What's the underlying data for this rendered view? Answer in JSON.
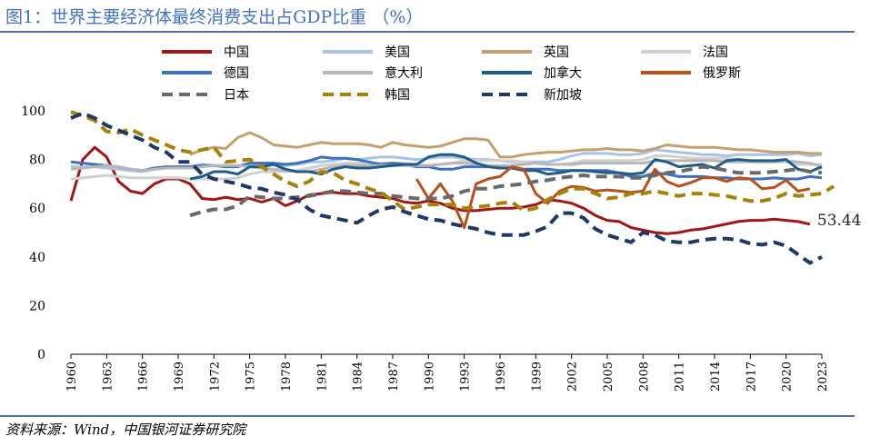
{
  "header": {
    "title": "图1：世界主要经济体最终消费支出占GDP比重 （%）"
  },
  "footer": {
    "source": "资料来源：Wind，中国银河证券研究院"
  },
  "colors": {
    "rule": "#4f6fa8",
    "title": "#4472c4"
  },
  "chart_data": {
    "type": "line",
    "title": "世界主要经济体最终消费支出占GDP比重 （%）",
    "xlabel": "",
    "ylabel": "",
    "xlim": [
      1960,
      2023
    ],
    "ylim": [
      0,
      100
    ],
    "yticks": [
      0,
      20,
      40,
      60,
      80,
      100
    ],
    "xticks": [
      1960,
      1963,
      1966,
      1969,
      1972,
      1975,
      1978,
      1981,
      1984,
      1987,
      1990,
      1993,
      1996,
      1999,
      2002,
      2005,
      2008,
      2011,
      2014,
      2017,
      2020,
      2023
    ],
    "grid": false,
    "legend_position": "top",
    "annotations": [
      {
        "series": "中国",
        "x": 2022,
        "y": 53.44,
        "text": "53.44"
      }
    ],
    "series": [
      {
        "name": "中国",
        "color": "#a31515",
        "dash": "solid",
        "start": 1960,
        "values": [
          63,
          80,
          85,
          81,
          71,
          67,
          66,
          70,
          72,
          72,
          70,
          64,
          63.5,
          64.5,
          63.5,
          64,
          62.5,
          64,
          61,
          63,
          65.5,
          66,
          66.5,
          66,
          66,
          65,
          64.5,
          64,
          62.5,
          62,
          63,
          62,
          60,
          59,
          59,
          59.5,
          60,
          60,
          60.5,
          61.5,
          63.5,
          63,
          62,
          60,
          57,
          55,
          54.5,
          52,
          51,
          50,
          49.5,
          50,
          51,
          51.5,
          52.5,
          53.5,
          54.5,
          55,
          55,
          55.5,
          55,
          54.5,
          53.44
        ]
      },
      {
        "name": "美国",
        "color": "#a9c3e6",
        "dash": "solid",
        "start": 1960,
        "values": [
          77,
          77,
          77,
          76.5,
          76,
          75.5,
          75,
          76,
          76.5,
          76.5,
          77,
          78,
          77.5,
          77,
          77.5,
          78,
          78,
          78,
          77.5,
          78,
          79,
          79,
          79.5,
          80.5,
          80,
          80.5,
          81,
          81,
          80.5,
          80,
          80.5,
          81,
          81,
          80.5,
          80,
          80,
          79.5,
          79,
          79,
          79,
          79,
          80,
          81.5,
          82.5,
          82.5,
          82.5,
          82,
          82,
          82.5,
          84,
          83.5,
          83,
          82.5,
          82,
          82,
          81.5,
          82,
          82,
          82,
          82,
          82,
          82.5,
          81.5,
          82
        ]
      },
      {
        "name": "英国",
        "color": "#c4a06e",
        "dash": "solid",
        "start": 1970,
        "values": [
          82,
          84,
          85,
          84.5,
          89,
          91,
          89,
          86,
          85.5,
          85,
          86,
          87,
          86.5,
          86.5,
          86.5,
          86,
          85,
          87,
          86,
          85.5,
          85,
          85.5,
          87,
          88.5,
          88.5,
          88,
          81,
          81,
          82,
          82.5,
          83,
          83,
          83.5,
          84,
          84,
          84.5,
          84,
          84,
          83.5,
          84.5,
          86,
          85.5,
          85,
          85,
          85,
          84.5,
          84,
          84,
          83.5,
          83,
          83,
          83,
          82.5,
          82.5
        ]
      },
      {
        "name": "法国",
        "color": "#d0d0d0",
        "dash": "solid",
        "start": 1960,
        "values": [
          72,
          72.5,
          73,
          73.5,
          73,
          72.5,
          72.5,
          72.5,
          72.5,
          72.5,
          72,
          72,
          72,
          72,
          72.5,
          74,
          75,
          75,
          75,
          75.5,
          76.5,
          77.5,
          78,
          78.5,
          78.5,
          78.5,
          78.5,
          78.5,
          78.5,
          78,
          77.5,
          78,
          78.5,
          79.5,
          79.5,
          79.5,
          79.5,
          79.5,
          79,
          78.5,
          78,
          78,
          78.5,
          79.5,
          79.5,
          79.5,
          79.5,
          79.5,
          80,
          81.5,
          81.5,
          81,
          80.5,
          80.5,
          80.5,
          80.5,
          80,
          79.5,
          79,
          79,
          79,
          78,
          78,
          78
        ]
      },
      {
        "name": "德国",
        "color": "#3f6fbf",
        "dash": "solid",
        "start": 1960,
        "values": [
          79,
          78.5,
          78,
          77.5,
          77,
          76,
          75.5,
          76.5,
          77,
          77,
          77,
          77.5,
          77.5,
          77,
          77,
          78.5,
          78.5,
          78.5,
          78,
          78.5,
          79.5,
          81,
          80.5,
          80.5,
          80,
          79,
          78,
          78.5,
          78,
          77,
          77,
          76,
          76,
          77,
          77,
          77,
          77,
          76.5,
          76,
          76,
          76,
          75.5,
          75.5,
          75.5,
          75.5,
          75.5,
          74.5,
          73,
          73,
          74.5,
          74,
          73,
          73,
          73,
          72.5,
          72.5,
          72,
          72,
          72,
          72.5,
          72,
          72,
          73,
          72.5
        ]
      },
      {
        "name": "意大利",
        "color": "#b7b7b7",
        "dash": "solid",
        "start": 1960,
        "values": [
          76,
          76.5,
          77,
          77.5,
          77,
          76,
          75.5,
          76,
          76.5,
          76.5,
          76.5,
          77,
          77.5,
          77.5,
          77.5,
          77,
          76.5,
          76,
          75.5,
          75,
          75,
          76,
          77,
          77.5,
          77.5,
          77.5,
          77.5,
          77.5,
          77.5,
          77.5,
          77.5,
          78,
          78.5,
          78.5,
          78,
          77.5,
          77.5,
          77.5,
          78,
          78.5,
          78,
          78,
          78,
          78.5,
          78.5,
          78.5,
          78.5,
          78.5,
          78.5,
          79.5,
          79.5,
          79.5,
          79.5,
          79.5,
          79.5,
          79,
          79,
          79,
          79,
          79,
          79.5,
          79,
          78.5,
          77
        ]
      },
      {
        "name": "加拿大",
        "color": "#1f5c8b",
        "dash": "solid",
        "start": 1970,
        "values": [
          72,
          73,
          75,
          75,
          74,
          77,
          77,
          78,
          76,
          75,
          75,
          74,
          76,
          77,
          76.5,
          76.5,
          77,
          77.5,
          78,
          78,
          81,
          82,
          82,
          81,
          78.5,
          77,
          76.5,
          76.5,
          75.5,
          75.5,
          74,
          74.5,
          75.5,
          75.5,
          75,
          74.5,
          74.5,
          74,
          74.5,
          80,
          79,
          77,
          77.5,
          78,
          76.5,
          79.5,
          80,
          79.5,
          79.5,
          79.5,
          80,
          76,
          75,
          77
        ]
      },
      {
        "name": "俄罗斯",
        "color": "#b8501a",
        "dash": "solid",
        "start": 1989,
        "values": [
          72,
          64,
          70,
          63,
          52,
          70,
          72,
          73,
          77,
          76,
          66,
          62,
          67,
          69,
          68.5,
          67,
          67.5,
          67,
          66.5,
          67,
          76,
          71,
          69,
          70.5,
          72.5,
          72.5,
          71,
          72.5,
          72,
          68,
          68.5,
          71.5,
          67,
          68
        ]
      },
      {
        "name": "日本",
        "color": "#6a6a6a",
        "dash": "dash",
        "start": 1970,
        "values": [
          57,
          58.5,
          59.5,
          59.5,
          61,
          65,
          64.5,
          64,
          64,
          64.5,
          65,
          66,
          67,
          67,
          66.5,
          66,
          66,
          65,
          64.5,
          64,
          64,
          64,
          65,
          67,
          68,
          68,
          69,
          69.5,
          70,
          71,
          71.5,
          72.5,
          73,
          73.5,
          73,
          73,
          73,
          72.5,
          72.5,
          73.5,
          74.5,
          75,
          76,
          77,
          76.5,
          75.5,
          74.5,
          74.5,
          74.5,
          75,
          75.5,
          76,
          75,
          74.5
        ]
      },
      {
        "name": "韩国",
        "color": "#a6820a",
        "dash": "dash",
        "start": 1960,
        "values": [
          99.5,
          98,
          96,
          91.5,
          91,
          92.5,
          90,
          88,
          86,
          84,
          83,
          84,
          85,
          79,
          79.5,
          80,
          77,
          74,
          71,
          69,
          71,
          75,
          74.5,
          71.5,
          70,
          68,
          66.5,
          63,
          59.5,
          60.5,
          61.5,
          61.5,
          61.5,
          60,
          60.5,
          61,
          62,
          62.5,
          59,
          60,
          63.5,
          66,
          68,
          68,
          66,
          64,
          64.5,
          66,
          66,
          67,
          66,
          65,
          66,
          66,
          65.5,
          65,
          64,
          63,
          63,
          64,
          66,
          65,
          65.5,
          66,
          69
        ]
      },
      {
        "name": "新加坡",
        "color": "#1f3868",
        "dash": "dash",
        "start": 1960,
        "values": [
          97,
          99,
          97,
          94,
          92,
          90,
          88,
          85,
          83,
          79,
          79,
          74,
          72,
          71,
          70,
          68.5,
          68,
          66.5,
          65.5,
          63.5,
          59.5,
          57,
          56,
          55,
          54,
          57,
          59.5,
          60.5,
          58.5,
          57,
          55.5,
          55,
          53.5,
          52.5,
          51.5,
          50,
          49,
          49,
          49,
          50.5,
          52.5,
          58,
          58,
          56,
          51.5,
          49,
          47.5,
          46,
          50,
          49,
          46.5,
          46,
          46,
          47,
          47.5,
          47.5,
          47,
          45.5,
          45,
          46,
          44.5,
          41,
          37.5,
          40
        ]
      }
    ]
  }
}
